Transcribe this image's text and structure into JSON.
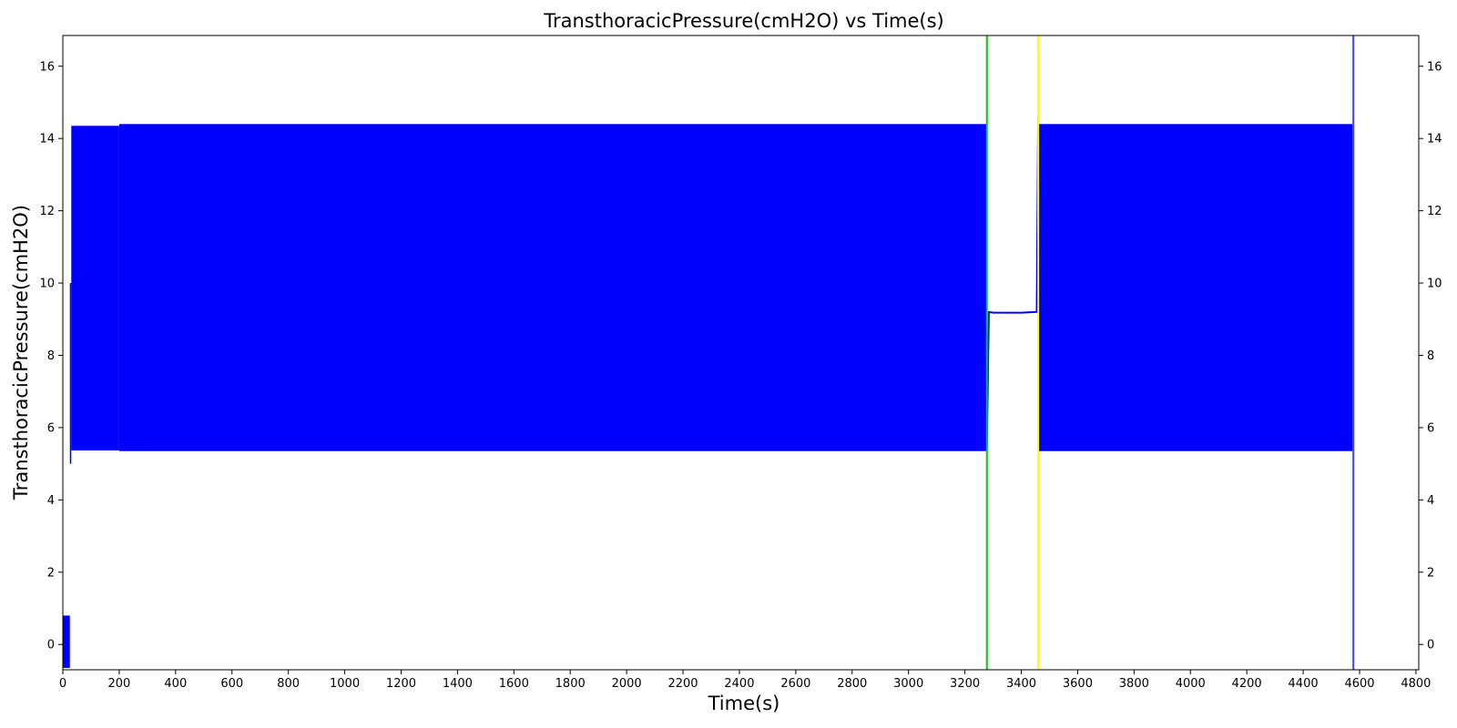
{
  "chart_data": {
    "type": "line",
    "title": "TransthoracicPressure(cmH2O) vs Time(s)",
    "xlabel": "Time(s)",
    "ylabel": "TransthoracicPressure(cmH2O)",
    "xlim": [
      0,
      4810
    ],
    "ylim": [
      -0.7,
      16.85
    ],
    "x_ticks": [
      0,
      200,
      400,
      600,
      800,
      1000,
      1200,
      1400,
      1600,
      1800,
      2000,
      2200,
      2400,
      2600,
      2800,
      3000,
      3200,
      3400,
      3600,
      3800,
      4000,
      4200,
      4400,
      4600,
      4800
    ],
    "y_ticks": [
      0,
      2,
      4,
      6,
      8,
      10,
      12,
      14,
      16
    ],
    "right_y_axis_ticks": true,
    "grid": false,
    "series": [
      {
        "color": "#0000ff",
        "oscillation_bands": [
          {
            "x_start": 0,
            "x_end": 25,
            "y_min": -0.65,
            "y_max": 0.8
          },
          {
            "x_start": 25,
            "x_end": 30,
            "y_min": 5.0,
            "y_max": 10.0
          },
          {
            "x_start": 30,
            "x_end": 200,
            "y_min": 5.37,
            "y_max": 14.35
          },
          {
            "x_start": 200,
            "x_end": 3278,
            "y_min": 5.35,
            "y_max": 14.4
          },
          {
            "x_start": 3463,
            "x_end": 4575,
            "y_min": 5.35,
            "y_max": 14.4
          }
        ],
        "segments": [
          {
            "x": [
              3278,
              3285,
              3300,
              3400,
              3455,
              3460
            ],
            "y": [
              5.35,
              9.2,
              9.18,
              9.18,
              9.2,
              14.65
            ]
          }
        ]
      }
    ],
    "vertical_lines": [
      {
        "x": 3278,
        "color": "#00cc00"
      },
      {
        "x": 3460,
        "color": "#ffff00"
      },
      {
        "x": 4578,
        "color": "#4444ff"
      }
    ]
  }
}
